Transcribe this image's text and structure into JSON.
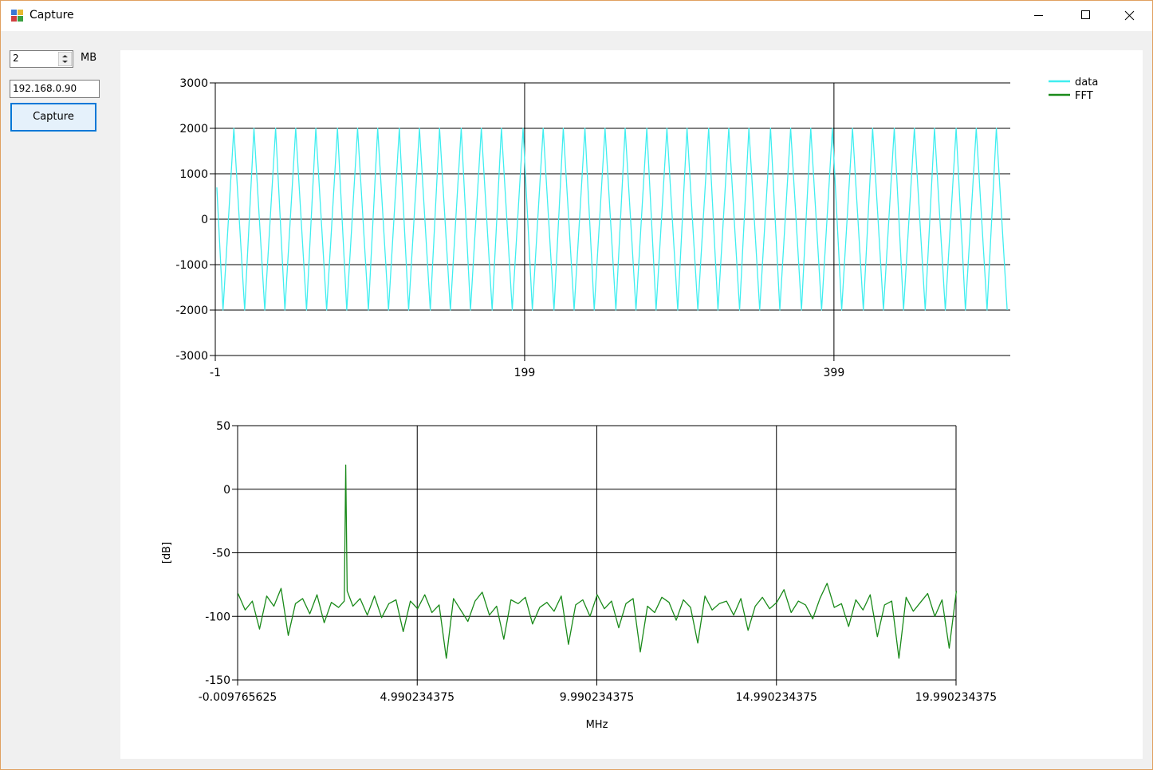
{
  "window": {
    "title": "Capture"
  },
  "controls": {
    "size_value": "2",
    "size_unit": "MB",
    "ip": "192.168.0.90",
    "button": "Capture"
  },
  "chart_data": [
    {
      "type": "line",
      "legend": "top-right",
      "x": [
        0,
        4,
        11,
        18,
        24,
        31,
        38,
        44,
        51,
        58,
        64,
        71,
        78,
        84,
        91,
        98,
        104,
        111,
        118,
        124,
        131,
        138,
        144,
        151,
        158,
        164,
        171,
        178,
        184,
        191,
        198,
        204,
        211,
        218,
        224,
        231,
        238,
        244,
        251,
        258,
        264,
        271,
        278,
        284,
        291,
        298,
        304,
        311,
        318,
        324,
        331,
        338,
        344,
        351,
        358,
        364,
        371,
        378,
        384,
        391,
        398,
        404,
        411,
        418,
        424,
        431,
        438,
        444,
        451,
        458,
        464,
        471,
        478,
        484,
        491,
        498,
        504,
        511
      ],
      "series": [
        {
          "name": "data",
          "color": "#40eef0",
          "values": [
            700,
            -2000,
            2000,
            -2000,
            2000,
            -2000,
            2000,
            -2000,
            2000,
            -2000,
            2000,
            -2000,
            2000,
            -2000,
            2000,
            -2000,
            2000,
            -2000,
            2000,
            -2000,
            2000,
            -2000,
            2000,
            -2000,
            2000,
            -2000,
            2000,
            -2000,
            2000,
            -2000,
            2000,
            -2000,
            2000,
            -2000,
            2000,
            -2000,
            2000,
            -2000,
            2000,
            -2000,
            2000,
            -2000,
            2000,
            -2000,
            2000,
            -2000,
            2000,
            -2000,
            2000,
            -2000,
            2000,
            -2000,
            2000,
            -2000,
            2000,
            -2000,
            2000,
            -2000,
            2000,
            -2000,
            2000,
            -2000,
            2000,
            -2000,
            2000,
            -2000,
            2000,
            -2000,
            2000,
            -2000,
            2000,
            -2000,
            2000,
            -2000,
            2000,
            -2000,
            2000,
            -2000
          ]
        }
      ],
      "xlim": [
        -1,
        513
      ],
      "xticks": [
        -1,
        199,
        399
      ],
      "ylim": [
        -3000,
        3000
      ],
      "yticks": [
        -3000,
        -2000,
        -1000,
        0,
        1000,
        2000,
        3000
      ],
      "grid": true
    },
    {
      "type": "line",
      "xlabel": "MHz",
      "ylabel": "[dB]",
      "x": [
        0,
        0.2,
        0.4,
        0.6,
        0.8,
        1,
        1.2,
        1.4,
        1.6,
        1.8,
        2,
        2.2,
        2.4,
        2.6,
        2.8,
        2.96,
        3,
        3.04,
        3.2,
        3.4,
        3.6,
        3.8,
        4,
        4.2,
        4.4,
        4.6,
        4.8,
        5,
        5.2,
        5.4,
        5.6,
        5.8,
        6,
        6.2,
        6.4,
        6.6,
        6.8,
        7,
        7.2,
        7.4,
        7.6,
        7.8,
        8,
        8.2,
        8.4,
        8.6,
        8.8,
        9,
        9.2,
        9.4,
        9.6,
        9.8,
        10,
        10.2,
        10.4,
        10.6,
        10.8,
        11,
        11.2,
        11.4,
        11.6,
        11.8,
        12,
        12.2,
        12.4,
        12.6,
        12.8,
        13,
        13.2,
        13.4,
        13.6,
        13.8,
        14,
        14.2,
        14.4,
        14.6,
        14.8,
        15,
        15.2,
        15.4,
        15.6,
        15.8,
        16,
        16.2,
        16.4,
        16.6,
        16.8,
        17,
        17.2,
        17.4,
        17.6,
        17.8,
        18,
        18.2,
        18.4,
        18.6,
        18.8,
        19,
        19.2,
        19.4,
        19.6,
        19.8,
        20
      ],
      "series": [
        {
          "name": "FFT",
          "color": "#1a8a1a",
          "values": [
            -82,
            -95,
            -88,
            -110,
            -84,
            -92,
            -78,
            -115,
            -90,
            -86,
            -98,
            -83,
            -105,
            -89,
            -93,
            -88,
            19,
            -80,
            -92,
            -86,
            -99,
            -84,
            -101,
            -90,
            -87,
            -112,
            -88,
            -94,
            -83,
            -97,
            -91,
            -133,
            -86,
            -95,
            -104,
            -88,
            -81,
            -99,
            -92,
            -118,
            -87,
            -90,
            -85,
            -106,
            -93,
            -89,
            -96,
            -84,
            -122,
            -91,
            -87,
            -100,
            -83,
            -94,
            -88,
            -109,
            -90,
            -86,
            -128,
            -92,
            -97,
            -85,
            -89,
            -103,
            -87,
            -93,
            -121,
            -84,
            -95,
            -90,
            -88,
            -99,
            -86,
            -111,
            -92,
            -85,
            -94,
            -89,
            -79,
            -97,
            -88,
            -91,
            -102,
            -86,
            -74,
            -93,
            -90,
            -108,
            -87,
            -95,
            -83,
            -116,
            -91,
            -88,
            -133,
            -85,
            -96,
            -89,
            -82,
            -100,
            -87,
            -125,
            -80
          ]
        }
      ],
      "xlim": [
        -0.009765625,
        19.990234375
      ],
      "xticks": [
        -0.009765625,
        4.990234375,
        9.990234375,
        14.990234375,
        19.990234375
      ],
      "ylim": [
        -150,
        50
      ],
      "yticks": [
        -150,
        -100,
        -50,
        0,
        50
      ],
      "grid": true
    }
  ]
}
